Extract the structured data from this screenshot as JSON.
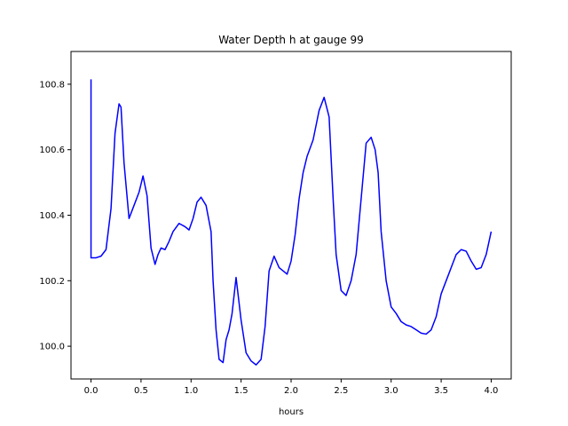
{
  "chart_data": {
    "type": "line",
    "title": "Water Depth h at gauge 99",
    "xlabel": "hours",
    "ylabel": "",
    "xlim": [
      -0.2,
      4.2
    ],
    "ylim": [
      99.9,
      100.9
    ],
    "xticks": [
      0.0,
      0.5,
      1.0,
      1.5,
      2.0,
      2.5,
      3.0,
      3.5,
      4.0
    ],
    "xtick_labels": [
      "0.0",
      "0.5",
      "1.0",
      "1.5",
      "2.0",
      "2.5",
      "3.0",
      "3.5",
      "4.0"
    ],
    "yticks": [
      100.0,
      100.2,
      100.4,
      100.6,
      100.8
    ],
    "ytick_labels": [
      "100.0",
      "100.2",
      "100.4",
      "100.6",
      "100.8"
    ],
    "grid": false,
    "series": [
      {
        "color": "#0000ff",
        "x": [
          0.0,
          0.0,
          0.05,
          0.1,
          0.15,
          0.2,
          0.24,
          0.28,
          0.3,
          0.33,
          0.38,
          0.43,
          0.48,
          0.52,
          0.56,
          0.6,
          0.64,
          0.67,
          0.7,
          0.74,
          0.78,
          0.82,
          0.88,
          0.94,
          0.98,
          1.02,
          1.06,
          1.1,
          1.15,
          1.2,
          1.22,
          1.25,
          1.28,
          1.32,
          1.35,
          1.38,
          1.41,
          1.45,
          1.5,
          1.55,
          1.6,
          1.65,
          1.7,
          1.74,
          1.78,
          1.83,
          1.88,
          1.92,
          1.96,
          2.0,
          2.04,
          2.08,
          2.12,
          2.16,
          2.22,
          2.28,
          2.33,
          2.38,
          2.42,
          2.45,
          2.5,
          2.55,
          2.6,
          2.65,
          2.7,
          2.75,
          2.8,
          2.84,
          2.87,
          2.9,
          2.95,
          3.0,
          3.05,
          3.1,
          3.15,
          3.2,
          3.25,
          3.3,
          3.35,
          3.4,
          3.45,
          3.5,
          3.55,
          3.6,
          3.65,
          3.7,
          3.75,
          3.8,
          3.85,
          3.9,
          3.95,
          4.0
        ],
        "y": [
          100.815,
          100.27,
          100.27,
          100.275,
          100.295,
          100.42,
          100.65,
          100.74,
          100.73,
          100.56,
          100.39,
          100.43,
          100.47,
          100.52,
          100.46,
          100.3,
          100.25,
          100.28,
          100.3,
          100.295,
          100.32,
          100.35,
          100.375,
          100.365,
          100.355,
          100.39,
          100.44,
          100.455,
          100.43,
          100.35,
          100.2,
          100.05,
          99.96,
          99.95,
          100.02,
          100.05,
          100.1,
          100.21,
          100.08,
          99.98,
          99.955,
          99.943,
          99.96,
          100.06,
          100.23,
          100.275,
          100.24,
          100.23,
          100.22,
          100.26,
          100.34,
          100.45,
          100.53,
          100.58,
          100.63,
          100.72,
          100.76,
          100.7,
          100.45,
          100.28,
          100.17,
          100.155,
          100.2,
          100.28,
          100.45,
          100.62,
          100.638,
          100.6,
          100.53,
          100.35,
          100.2,
          100.12,
          100.1,
          100.075,
          100.065,
          100.06,
          100.05,
          100.04,
          100.037,
          100.05,
          100.09,
          100.16,
          100.2,
          100.24,
          100.28,
          100.295,
          100.29,
          100.26,
          100.235,
          100.24,
          100.28,
          100.35
        ]
      }
    ]
  }
}
